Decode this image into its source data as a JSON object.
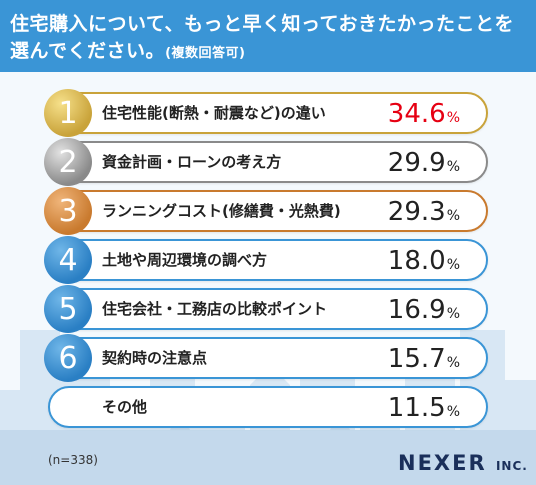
{
  "header": {
    "title_line1": "住宅購入について、もっと早く知っておきたかったことを",
    "title_line2": "選んでください。",
    "title_note": "(複数回答可)"
  },
  "footer": {
    "sample_note": "(n=338)",
    "brand": "NEXER",
    "brand_suffix": "INC."
  },
  "colors": {
    "header_blue": "#3a95d6",
    "gold": "#c9a33a",
    "silver": "#8a8a8a",
    "bronze": "#c97a2e",
    "highlight_red": "#e60012"
  },
  "chart_data": {
    "type": "bar",
    "title": "住宅購入について、もっと早く知っておきたかったことを選んでください。(複数回答可)",
    "unit": "%",
    "n": "n=338",
    "items": [
      {
        "rank": "1",
        "label": "住宅性能(断熱・耐震など)の違い",
        "value": "34.6",
        "pct": "%",
        "medal": "gold"
      },
      {
        "rank": "2",
        "label": "資金計画・ローンの考え方",
        "value": "29.9",
        "pct": "%",
        "medal": "silver"
      },
      {
        "rank": "3",
        "label": "ランニングコスト(修繕費・光熱費)",
        "value": "29.3",
        "pct": "%",
        "medal": "bronze"
      },
      {
        "rank": "4",
        "label": "土地や周辺環境の調べ方",
        "value": "18.0",
        "pct": "%",
        "medal": "blue"
      },
      {
        "rank": "5",
        "label": "住宅会社・工務店の比較ポイント",
        "value": "16.9",
        "pct": "%",
        "medal": "blue"
      },
      {
        "rank": "6",
        "label": "契約時の注意点",
        "value": "15.7",
        "pct": "%",
        "medal": "blue"
      },
      {
        "rank": "",
        "label": "その他",
        "value": "11.5",
        "pct": "%",
        "medal": "none"
      }
    ]
  }
}
